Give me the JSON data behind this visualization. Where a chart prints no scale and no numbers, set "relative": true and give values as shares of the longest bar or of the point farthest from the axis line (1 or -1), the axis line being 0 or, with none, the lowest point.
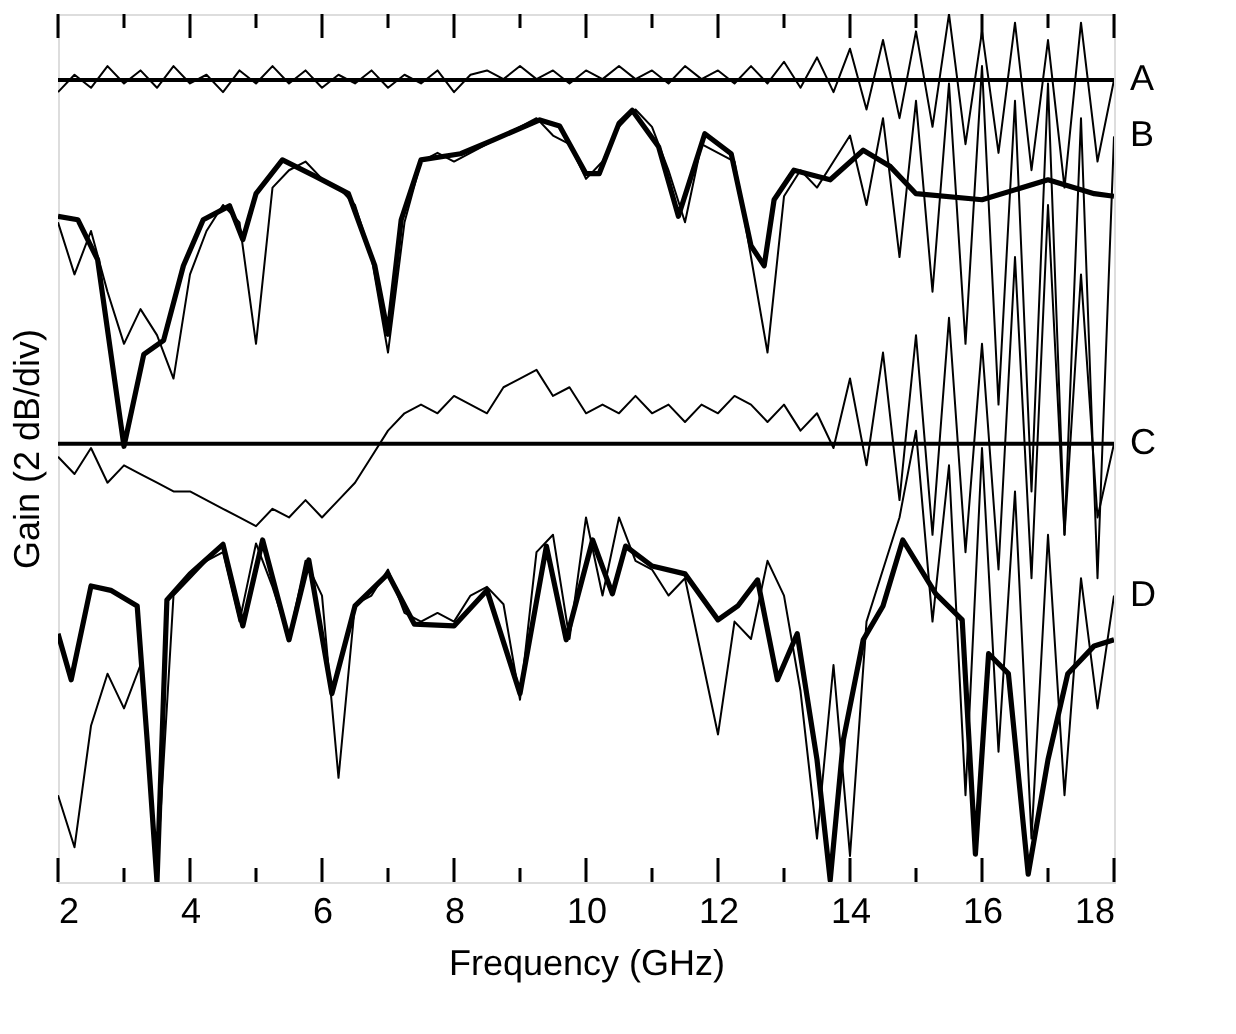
{
  "chart_data": {
    "type": "line",
    "relative": true,
    "xlabel": "Frequency (GHz)",
    "ylabel": "Gain (2 dB/div)",
    "xlim": [
      2,
      18
    ],
    "xticks": [
      2,
      {
        "value": 3,
        "label": null
      },
      4,
      {
        "value": 5,
        "label": null
      },
      6,
      {
        "value": 7,
        "label": null
      },
      8,
      {
        "value": 9,
        "label": null
      },
      10,
      {
        "value": 11,
        "label": null
      },
      12,
      {
        "value": 13,
        "label": null
      },
      14,
      {
        "value": 15,
        "label": null
      },
      16,
      {
        "value": 17,
        "label": null
      },
      18
    ],
    "grid": false,
    "marker": "none",
    "line_style": "solid",
    "ref_lines": [
      {
        "axis": "y",
        "value": 0.924,
        "color": "#000000"
      },
      {
        "axis": "y",
        "value": 0.505,
        "color": "#000000"
      }
    ],
    "series": [
      {
        "name": "A",
        "color": "#000000",
        "x": [
          2,
          2.25,
          2.5,
          2.75,
          3,
          3.25,
          3.5,
          3.75,
          4,
          4.25,
          4.5,
          4.75,
          5,
          5.25,
          5.5,
          5.75,
          6,
          6.25,
          6.5,
          6.75,
          7,
          7.25,
          7.5,
          7.75,
          8,
          8.25,
          8.5,
          8.75,
          9,
          9.25,
          9.5,
          9.75,
          10,
          10.25,
          10.5,
          10.75,
          11,
          11.25,
          11.5,
          11.75,
          12,
          12.25,
          12.5,
          12.75,
          13,
          13.25,
          13.5,
          13.75,
          14,
          14.25,
          14.5,
          14.75,
          15,
          15.25,
          15.5,
          15.75,
          16,
          16.25,
          16.5,
          16.75,
          17,
          17.25,
          17.5,
          17.75,
          18
        ],
        "values": [
          0.91,
          0.93,
          0.915,
          0.94,
          0.92,
          0.935,
          0.915,
          0.94,
          0.92,
          0.93,
          0.91,
          0.935,
          0.92,
          0.94,
          0.92,
          0.935,
          0.915,
          0.93,
          0.92,
          0.935,
          0.915,
          0.93,
          0.92,
          0.935,
          0.91,
          0.93,
          0.935,
          0.925,
          0.94,
          0.925,
          0.935,
          0.92,
          0.935,
          0.925,
          0.94,
          0.925,
          0.935,
          0.92,
          0.94,
          0.925,
          0.935,
          0.92,
          0.94,
          0.92,
          0.945,
          0.915,
          0.95,
          0.91,
          0.96,
          0.89,
          0.97,
          0.88,
          0.98,
          0.87,
          1.0,
          0.85,
          0.98,
          0.84,
          0.99,
          0.82,
          0.97,
          0.8,
          0.99,
          0.83,
          0.924
        ]
      },
      {
        "name": "B",
        "color": "#000000",
        "x": [
          2,
          2.25,
          2.5,
          2.75,
          3,
          3.25,
          3.5,
          3.75,
          4,
          4.25,
          4.5,
          4.75,
          5,
          5.25,
          5.5,
          5.75,
          6,
          6.25,
          6.5,
          6.75,
          7,
          7.25,
          7.5,
          7.75,
          8,
          8.25,
          8.5,
          8.75,
          9,
          9.25,
          9.5,
          9.75,
          10,
          10.25,
          10.5,
          10.75,
          11,
          11.25,
          11.5,
          11.75,
          12,
          12.25,
          12.5,
          12.75,
          13,
          13.25,
          13.5,
          13.75,
          14,
          14.25,
          14.5,
          14.75,
          15,
          15.25,
          15.5,
          15.75,
          16,
          16.25,
          16.5,
          16.75,
          17,
          17.25,
          17.5,
          17.75,
          18
        ],
        "values": [
          0.76,
          0.7,
          0.75,
          0.68,
          0.62,
          0.66,
          0.63,
          0.58,
          0.7,
          0.75,
          0.78,
          0.76,
          0.62,
          0.8,
          0.82,
          0.83,
          0.81,
          0.8,
          0.78,
          0.72,
          0.61,
          0.76,
          0.83,
          0.84,
          0.83,
          0.84,
          0.85,
          0.86,
          0.87,
          0.88,
          0.86,
          0.85,
          0.81,
          0.83,
          0.87,
          0.89,
          0.87,
          0.82,
          0.76,
          0.85,
          0.84,
          0.83,
          0.72,
          0.61,
          0.79,
          0.82,
          0.8,
          0.83,
          0.86,
          0.78,
          0.88,
          0.72,
          0.9,
          0.68,
          0.92,
          0.62,
          0.94,
          0.55,
          0.9,
          0.45,
          0.92,
          0.4,
          0.88,
          0.35,
          0.859
        ]
      },
      {
        "color": "#000000",
        "x": [
          2,
          2.3,
          2.6,
          3.0,
          3.3,
          3.6,
          3.9,
          4.2,
          4.6,
          4.8,
          5.0,
          5.4,
          5.9,
          6.4,
          6.8,
          7.0,
          7.2,
          7.5,
          8.1,
          8.6,
          9.3,
          9.6,
          10.0,
          10.2,
          10.5,
          10.7,
          11.1,
          11.4,
          11.8,
          12.2,
          12.5,
          12.7,
          12.85,
          13.15,
          13.7,
          14.2,
          14.6,
          15.0,
          16.0,
          17.0,
          17.7,
          18
        ],
        "values": [
          0.767,
          0.763,
          0.717,
          0.502,
          0.608,
          0.624,
          0.71,
          0.763,
          0.779,
          0.74,
          0.793,
          0.832,
          0.813,
          0.793,
          0.71,
          0.631,
          0.763,
          0.832,
          0.839,
          0.855,
          0.878,
          0.871,
          0.816,
          0.816,
          0.874,
          0.889,
          0.847,
          0.767,
          0.862,
          0.839,
          0.733,
          0.71,
          0.786,
          0.82,
          0.809,
          0.843,
          0.825,
          0.793,
          0.786,
          0.809,
          0.793,
          0.79
        ]
      },
      {
        "name": "C",
        "color": "#000000",
        "x": [
          2,
          2.25,
          2.5,
          2.75,
          3,
          3.25,
          3.5,
          3.75,
          4,
          4.25,
          4.5,
          4.75,
          5,
          5.25,
          5.5,
          5.75,
          6,
          6.25,
          6.5,
          6.75,
          7,
          7.25,
          7.5,
          7.75,
          8,
          8.25,
          8.5,
          8.75,
          9,
          9.25,
          9.5,
          9.75,
          10,
          10.25,
          10.5,
          10.75,
          11,
          11.25,
          11.5,
          11.75,
          12,
          12.25,
          12.5,
          12.75,
          13,
          13.25,
          13.5,
          13.75,
          14,
          14.25,
          14.5,
          14.75,
          15,
          15.25,
          15.5,
          15.75,
          16,
          16.25,
          16.5,
          16.75,
          17,
          17.25,
          17.5,
          17.75,
          18
        ],
        "values": [
          0.49,
          0.47,
          0.5,
          0.46,
          0.48,
          0.47,
          0.46,
          0.45,
          0.45,
          0.44,
          0.43,
          0.42,
          0.41,
          0.43,
          0.42,
          0.44,
          0.42,
          0.44,
          0.46,
          0.49,
          0.52,
          0.54,
          0.55,
          0.54,
          0.56,
          0.55,
          0.54,
          0.57,
          0.58,
          0.59,
          0.56,
          0.57,
          0.54,
          0.55,
          0.54,
          0.56,
          0.54,
          0.55,
          0.53,
          0.55,
          0.54,
          0.56,
          0.55,
          0.53,
          0.55,
          0.52,
          0.54,
          0.5,
          0.58,
          0.48,
          0.61,
          0.44,
          0.63,
          0.4,
          0.65,
          0.38,
          0.62,
          0.36,
          0.72,
          0.35,
          0.78,
          0.4,
          0.7,
          0.42,
          0.505
        ]
      },
      {
        "name": "D",
        "color": "#000000",
        "x": [
          2,
          2.25,
          2.5,
          2.75,
          3,
          3.25,
          3.5,
          3.75,
          4,
          4.25,
          4.5,
          4.75,
          5,
          5.25,
          5.5,
          5.75,
          6,
          6.25,
          6.5,
          6.75,
          7,
          7.25,
          7.5,
          7.75,
          8,
          8.25,
          8.5,
          8.75,
          9,
          9.25,
          9.5,
          9.75,
          10,
          10.25,
          10.5,
          10.75,
          11,
          11.25,
          11.5,
          11.75,
          12,
          12.25,
          12.5,
          12.75,
          13,
          13.25,
          13.5,
          13.75,
          14,
          14.25,
          14.5,
          14.75,
          15,
          15.25,
          15.5,
          15.75,
          16,
          16.25,
          16.5,
          16.75,
          17,
          17.25,
          17.5,
          17.75,
          18
        ],
        "values": [
          0.1,
          0.04,
          0.18,
          0.24,
          0.2,
          0.25,
          0.01,
          0.33,
          0.35,
          0.37,
          0.38,
          0.3,
          0.39,
          0.34,
          0.28,
          0.37,
          0.33,
          0.12,
          0.32,
          0.33,
          0.36,
          0.31,
          0.3,
          0.31,
          0.3,
          0.33,
          0.34,
          0.32,
          0.21,
          0.38,
          0.4,
          0.28,
          0.42,
          0.33,
          0.42,
          0.37,
          0.36,
          0.33,
          0.35,
          0.26,
          0.17,
          0.3,
          0.28,
          0.37,
          0.33,
          0.22,
          0.05,
          0.25,
          0.03,
          0.3,
          0.36,
          0.42,
          0.52,
          0.3,
          0.48,
          0.1,
          0.5,
          0.15,
          0.45,
          0.05,
          0.4,
          0.1,
          0.35,
          0.2,
          0.33
        ]
      },
      {
        "color": "#000000",
        "x": [
          2,
          2.2,
          2.5,
          2.8,
          3.2,
          3.35,
          3.5,
          3.65,
          4.0,
          4.5,
          4.8,
          5.1,
          5.5,
          5.8,
          6.15,
          6.5,
          7.0,
          7.4,
          8.0,
          8.5,
          9.0,
          9.4,
          9.7,
          10.1,
          10.4,
          10.6,
          11.0,
          11.5,
          12.0,
          12.3,
          12.6,
          12.9,
          13.2,
          13.5,
          13.7,
          13.9,
          14.2,
          14.5,
          14.8,
          15.3,
          15.7,
          15.9,
          16.1,
          16.4,
          16.7,
          17.0,
          17.3,
          17.7,
          18
        ],
        "values": [
          0.286,
          0.233,
          0.341,
          0.336,
          0.318,
          0.164,
          0,
          0.325,
          0.355,
          0.389,
          0.295,
          0.394,
          0.279,
          0.371,
          0.217,
          0.318,
          0.355,
          0.297,
          0.295,
          0.336,
          0.217,
          0.387,
          0.279,
          0.394,
          0.332,
          0.387,
          0.364,
          0.355,
          0.302,
          0.318,
          0.348,
          0.233,
          0.286,
          0.141,
          0.002,
          0.164,
          0.279,
          0.318,
          0.394,
          0.332,
          0.302,
          0.032,
          0.263,
          0.24,
          0.009,
          0.141,
          0.24,
          0.272,
          0.279
        ]
      }
    ]
  }
}
